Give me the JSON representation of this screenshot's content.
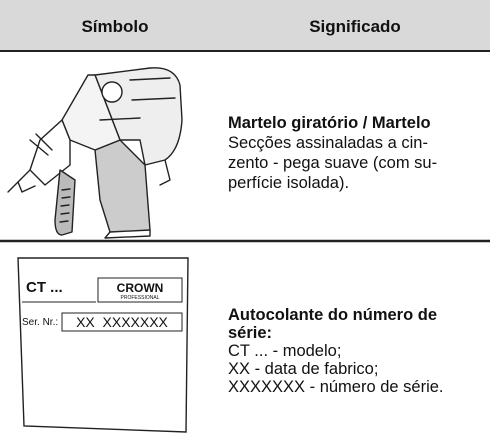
{
  "table": {
    "headers": [
      "Símbolo",
      "Significado"
    ],
    "rows": [
      {
        "title": [
          "Martelo giratório / Martelo"
        ],
        "lines": [
          "Secções assinaladas a cin-",
          "zento - pega suave (com su-",
          "perfície isolada)."
        ]
      },
      {
        "title": [
          "Autocolante do número de",
          "série:"
        ],
        "lines": [
          "CT ... - modelo;",
          "XX - data de fabrico;",
          "XXXXXXX - número de série."
        ],
        "label": {
          "model": "CT ...",
          "brand": "CROWN",
          "brand_sub": "PROFESSIONAL",
          "serial_caption": "Ser. Nr.:",
          "serial": "XX  XXXXXXX"
        }
      }
    ]
  }
}
